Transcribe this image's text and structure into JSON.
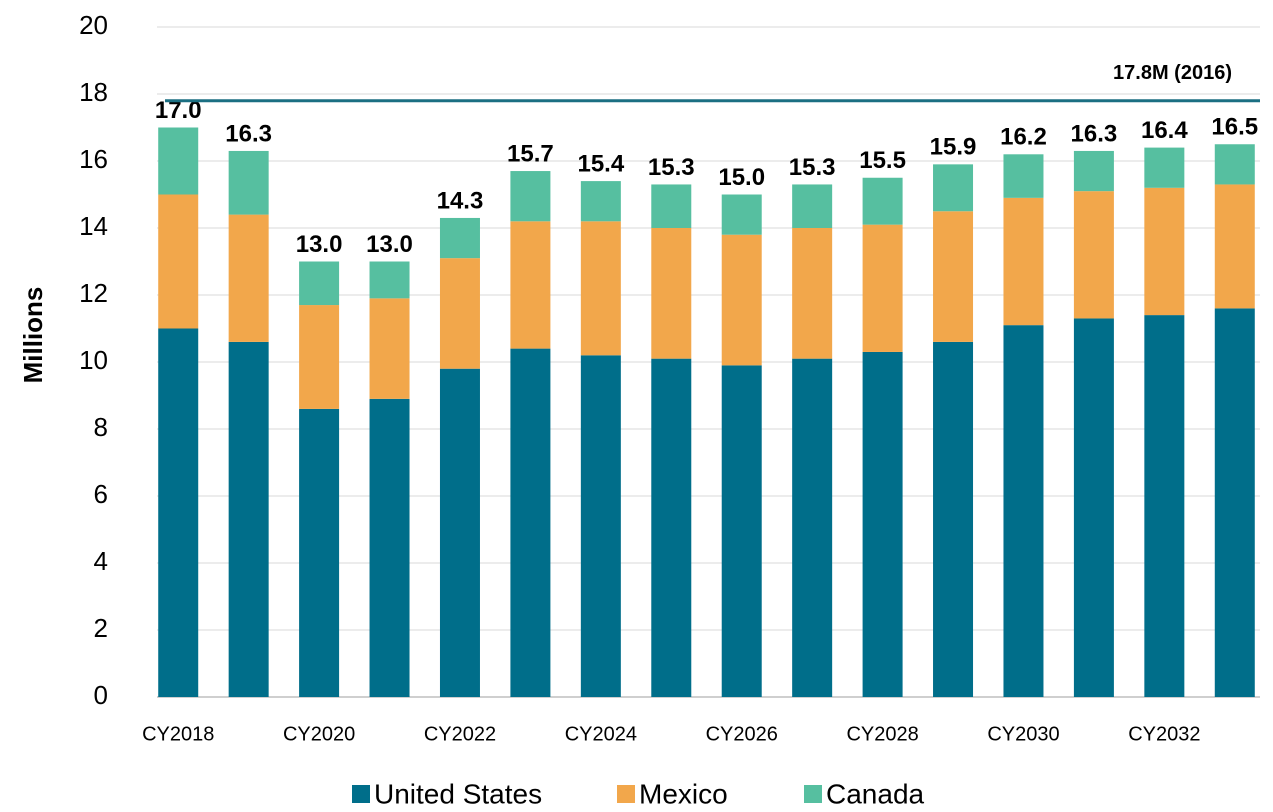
{
  "chart_data": {
    "type": "stacked_bar",
    "y_label": "Millions",
    "categories": [
      "CY2018",
      null,
      "CY2020",
      null,
      "CY2022",
      null,
      "CY2024",
      null,
      "CY2026",
      null,
      "CY2028",
      null,
      "CY2030",
      null,
      "CY2032",
      null
    ],
    "series": [
      {
        "name": "United States",
        "color": "#006e8a",
        "values": [
          11.0,
          10.6,
          8.6,
          8.9,
          9.8,
          10.4,
          10.2,
          10.1,
          9.9,
          10.1,
          10.3,
          10.6,
          11.1,
          11.3,
          11.4,
          11.6
        ]
      },
      {
        "name": "Mexico",
        "color": "#f2a74b",
        "values": [
          4.0,
          3.8,
          3.1,
          3.0,
          3.3,
          3.8,
          4.0,
          3.9,
          3.9,
          3.9,
          3.8,
          3.9,
          3.8,
          3.8,
          3.8,
          3.7
        ]
      },
      {
        "name": "Canada",
        "color": "#56bfa0",
        "values": [
          2.0,
          1.9,
          1.3,
          1.1,
          1.2,
          1.5,
          1.2,
          1.3,
          1.2,
          1.3,
          1.4,
          1.4,
          1.3,
          1.2,
          1.2,
          1.2
        ]
      }
    ],
    "total_labels": [
      "17.0",
      "16.3",
      "13.0",
      "13.0",
      "14.3",
      "15.7",
      "15.4",
      "15.3",
      "15.0",
      "15.3",
      "15.5",
      "15.9",
      "16.2",
      "16.3",
      "16.4",
      "16.5"
    ],
    "reference": {
      "value": 17.8,
      "label": "17.8M (2016)",
      "color": "#1b6f82"
    },
    "ylim": [
      0,
      20
    ],
    "yticks": [
      0,
      2,
      4,
      6,
      8,
      10,
      12,
      14,
      16,
      18,
      20
    ],
    "grid": true,
    "legend": "bottom"
  }
}
